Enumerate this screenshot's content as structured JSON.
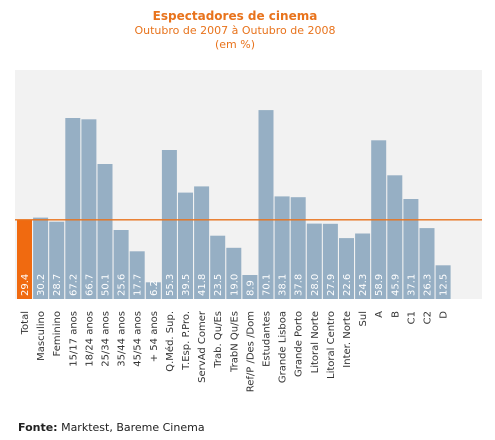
{
  "chart_data": {
    "type": "bar",
    "title": "Espectadores de cinema",
    "subtitle": "Outubro de 2007 à Outubro de 2008",
    "unit_label": "(em %)",
    "categories": [
      "Total",
      "Masculino",
      "Feminino",
      "15/17 anos",
      "18/24 anos",
      "25/34 anos",
      "35/44 anos",
      "45/54 anos",
      "+ 54  anos",
      "Q.Méd. Sup.",
      "T.Esp. P.Pro.",
      "ServAd Comer",
      "Trab. Qu/Es",
      "TrabN Qu/Es",
      "Ref/P /Des /Dom",
      "Estudantes",
      "Grande Lisboa",
      "Grande Porto",
      "Litoral Norte",
      "Litoral Centro",
      "Inter. Norte",
      "Sul",
      "A",
      "B",
      "C1",
      "C2",
      "D"
    ],
    "values": [
      29.4,
      30.2,
      28.7,
      67.2,
      66.7,
      50.1,
      25.6,
      17.7,
      6.2,
      55.3,
      39.5,
      41.8,
      23.5,
      19.0,
      8.9,
      70.1,
      38.1,
      37.8,
      28.0,
      27.9,
      22.6,
      24.3,
      58.9,
      45.9,
      37.1,
      26.3,
      12.5
    ],
    "value_labels": [
      "29.4",
      "30.2",
      "28.7",
      "67.2",
      "66.7",
      "50.1",
      "25.6",
      "17.7",
      "6.2",
      "55.3",
      "39.5",
      "41.8",
      "23.5",
      "19.0",
      "8.9",
      "70.1",
      "38.1",
      "37.8",
      "28.0",
      "27.9",
      "22.6",
      "24.3",
      "58.9",
      "45.9",
      "37.1",
      "26.3",
      "12.5"
    ],
    "highlight_index": 0,
    "reference_value": 29.4,
    "ylim": [
      0,
      85
    ],
    "grid": false,
    "colors": {
      "bar": "#96afc4",
      "highlight": "#f06a10",
      "reference_line": "#e8731c",
      "plot_bg": "#f2f2f2",
      "title": "#e8731c"
    }
  },
  "footer": {
    "source_label": "Fonte:",
    "source_text": " Marktest, Bareme Cinema"
  }
}
